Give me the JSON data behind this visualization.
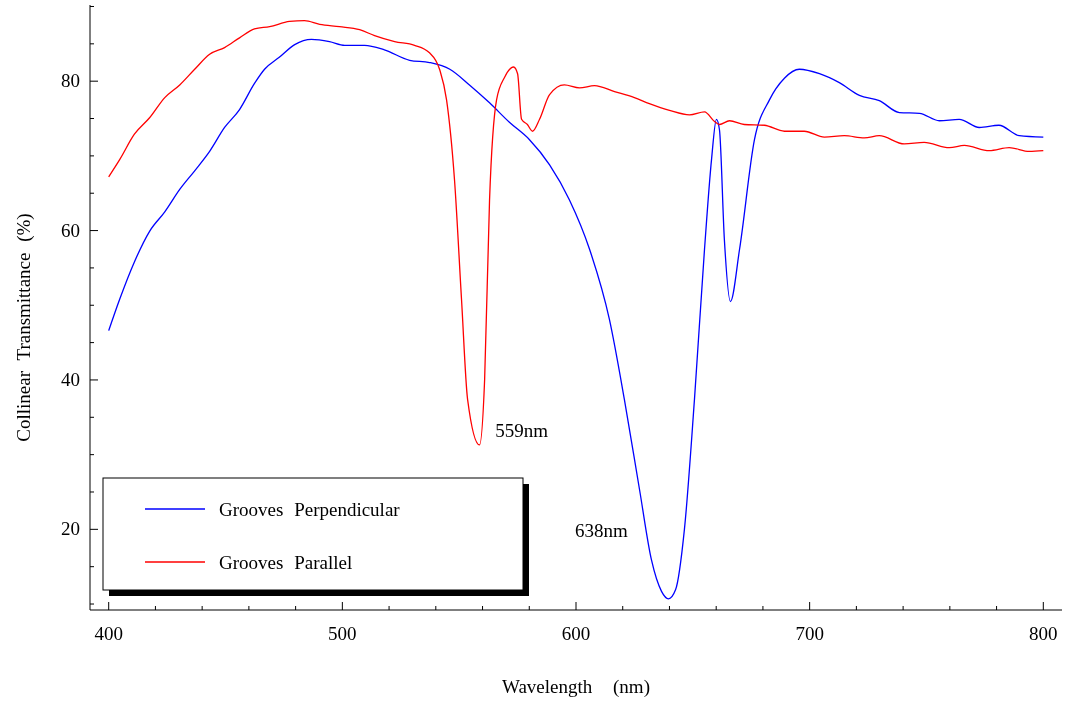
{
  "chart_data": {
    "type": "line",
    "xlabel": "Wavelength (nm)",
    "ylabel": "Collinear Transmittance (%)",
    "xlim": [
      392,
      808
    ],
    "ylim": [
      9.2,
      90.2
    ],
    "xticks": [
      400,
      {
        "value": 420,
        "label": null
      },
      {
        "value": 440,
        "label": null
      },
      {
        "value": 460,
        "label": null
      },
      {
        "value": 480,
        "label": null
      },
      500,
      {
        "value": 520,
        "label": null
      },
      {
        "value": 540,
        "label": null
      },
      {
        "value": 560,
        "label": null
      },
      {
        "value": 580,
        "label": null
      },
      600,
      {
        "value": 620,
        "label": null
      },
      {
        "value": 640,
        "label": null
      },
      {
        "value": 660,
        "label": null
      },
      {
        "value": 680,
        "label": null
      },
      700,
      {
        "value": 720,
        "label": null
      },
      {
        "value": 740,
        "label": null
      },
      {
        "value": 760,
        "label": null
      },
      {
        "value": 780,
        "label": null
      },
      800
    ],
    "yticks": [
      {
        "value": 10,
        "label": null
      },
      {
        "value": 15,
        "label": null
      },
      20,
      {
        "value": 25,
        "label": null
      },
      {
        "value": 30,
        "label": null
      },
      {
        "value": 35,
        "label": null
      },
      40,
      {
        "value": 45,
        "label": null
      },
      {
        "value": 50,
        "label": null
      },
      {
        "value": 55,
        "label": null
      },
      60,
      {
        "value": 65,
        "label": null
      },
      {
        "value": 70,
        "label": null
      },
      {
        "value": 75,
        "label": null
      },
      80,
      {
        "value": 85,
        "label": null
      },
      {
        "value": 90,
        "label": null
      }
    ],
    "grid": false,
    "legend": "bottom left",
    "marker": "none",
    "line_style": "solid",
    "series": [
      {
        "name": "Grooves Perpendicular",
        "color": "#0000ff",
        "x": [
          400,
          404.7,
          411,
          417.5,
          424,
          430.4,
          436.8,
          443.2,
          449.6,
          456,
          462.4,
          466.7,
          473,
          479.6,
          486.8,
          494.5,
          501,
          509.5,
          518,
          528.8,
          537.3,
          546,
          554.4,
          563,
          571.5,
          580,
          588.7,
          597.2,
          605.8,
          614.3,
          620.7,
          627.2,
          632.3,
          636.6,
          639.6,
          642.6,
          646.4,
          650.7,
          655,
          658,
          660.1,
          661.4,
          663.5,
          666.1,
          670,
          676.4,
          682.8,
          689.2,
          695.6,
          704.2,
          712.7,
          721.3,
          729.8,
          738.4,
          747,
          755.5,
          764,
          772.6,
          781,
          789.7,
          800
        ],
        "values": [
          46.6,
          50.8,
          55.8,
          59.9,
          62.5,
          65.5,
          68,
          70.6,
          73.8,
          76.2,
          79.7,
          81.6,
          83.2,
          84.9,
          85.6,
          85.3,
          84.8,
          84.8,
          84.2,
          82.8,
          82.5,
          81.6,
          79.5,
          77.1,
          74.5,
          72.2,
          68.8,
          64.1,
          57.5,
          48.1,
          37.4,
          25.3,
          15.9,
          11.7,
          10.7,
          11.9,
          20,
          37.4,
          57.5,
          69.5,
          74.9,
          73.5,
          58.8,
          50.5,
          57.5,
          72.2,
          77.5,
          80.4,
          81.6,
          81,
          79.8,
          78.1,
          77.4,
          75.8,
          75.7,
          74.7,
          74.9,
          73.8,
          74.1,
          72.7,
          72.5
        ]
      },
      {
        "name": "Grooves Parallel",
        "color": "#ff0000",
        "x": [
          400,
          404.7,
          411,
          417.5,
          424,
          430.4,
          436.8,
          443.2,
          449.6,
          456,
          462.4,
          468.9,
          477.4,
          483.8,
          490.3,
          498.8,
          507.4,
          513.8,
          522.4,
          530.9,
          537.3,
          541.6,
          544.6,
          548,
          551,
          553.6,
          558.7,
          560.9,
          563,
          566,
          569.4,
          573.3,
          575,
          576.7,
          579.2,
          581.4,
          584.4,
          588.7,
          595,
          601.5,
          607.9,
          616.5,
          625,
          631.4,
          640,
          648.6,
          655,
          659.3,
          661.4,
          665.7,
          672,
          680.6,
          689.2,
          697.7,
          706.3,
          714.8,
          723.4,
          729.8,
          740.5,
          749,
          759.8,
          766.2,
          776.9,
          785.4,
          794,
          800
        ],
        "values": [
          67.2,
          69.5,
          72.9,
          75.1,
          77.8,
          79.5,
          81.6,
          83.6,
          84.5,
          85.8,
          87,
          87.3,
          88,
          88.1,
          87.6,
          87.3,
          86.9,
          86.1,
          85.3,
          84.8,
          83.8,
          81.6,
          77.5,
          66.8,
          50.8,
          37.4,
          31.3,
          40.1,
          64.1,
          77.5,
          80.5,
          81.9,
          81,
          74.9,
          74.2,
          73.3,
          74.9,
          78.2,
          79.5,
          79.1,
          79.4,
          78.6,
          77.8,
          77,
          76.1,
          75.5,
          75.9,
          74.6,
          74.2,
          74.7,
          74.2,
          74.1,
          73.3,
          73.3,
          72.5,
          72.7,
          72.4,
          72.7,
          71.6,
          71.8,
          71.1,
          71.4,
          70.7,
          71.1,
          70.6,
          70.7
        ]
      }
    ],
    "annotations": [
      {
        "text": "559nm",
        "x": 559,
        "y": 31.3
      },
      "638nm"
    ]
  }
}
